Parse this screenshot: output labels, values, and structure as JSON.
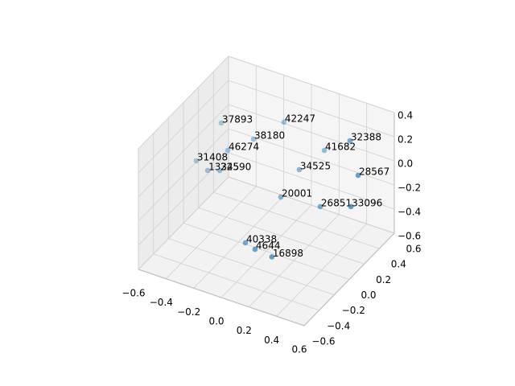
{
  "chart_data": {
    "type": "scatter3d",
    "color": "#1f77b4",
    "labels": [
      "37893",
      "42247",
      "38180",
      "46274",
      "31408",
      "13345",
      "22590",
      "32388",
      "41682",
      "34525",
      "28567",
      "20001",
      "26851",
      "33096",
      "40338",
      "4644",
      "16898"
    ],
    "x": [
      -0.414,
      -0.077,
      -0.217,
      -0.361,
      -0.541,
      -0.428,
      -0.362,
      0.38,
      0.164,
      0.066,
      0.48,
      -0.017,
      0.248,
      0.479,
      -0.095,
      -0.008,
      0.098
    ],
    "y": [
      0.161,
      0.376,
      0.228,
      0.15,
      0.062,
      0.006,
      0.045,
      0.414,
      0.47,
      0.317,
      0.339,
      0.224,
      0.261,
      0.245,
      -0.104,
      -0.136,
      -0.107
    ],
    "z": [
      0.2,
      0.2,
      0.1,
      0.0,
      -0.1,
      -0.1,
      -0.1,
      0.2,
      0.0,
      -0.1,
      0.0,
      -0.3,
      -0.3,
      -0.2,
      -0.5,
      -0.5,
      -0.54
    ],
    "xlim": [
      -0.6,
      0.6
    ],
    "ylim": [
      -0.6,
      0.6
    ],
    "zlim": [
      -0.6,
      0.4
    ],
    "xticks": [
      {
        "value": -0.6,
        "label": "−0.6"
      },
      {
        "value": -0.4,
        "label": "−0.4"
      },
      {
        "value": -0.2,
        "label": "−0.2"
      },
      {
        "value": 0,
        "label": "0.0"
      },
      0.2,
      0.4,
      0.6
    ],
    "yticks": [
      {
        "value": -0.6,
        "label": "−0.6"
      },
      {
        "value": -0.4,
        "label": "−0.4"
      },
      {
        "value": -0.2,
        "label": "−0.2"
      },
      {
        "value": 0,
        "label": "0.0"
      },
      0.2,
      0.4,
      0.6
    ],
    "zticks": [
      {
        "value": -0.6,
        "label": "−0.6"
      },
      {
        "value": -0.4,
        "label": "−0.4"
      },
      {
        "value": -0.2,
        "label": "−0.2"
      },
      {
        "value": 0,
        "label": "0.0"
      },
      0.2,
      0.4
    ],
    "grid": true
  }
}
